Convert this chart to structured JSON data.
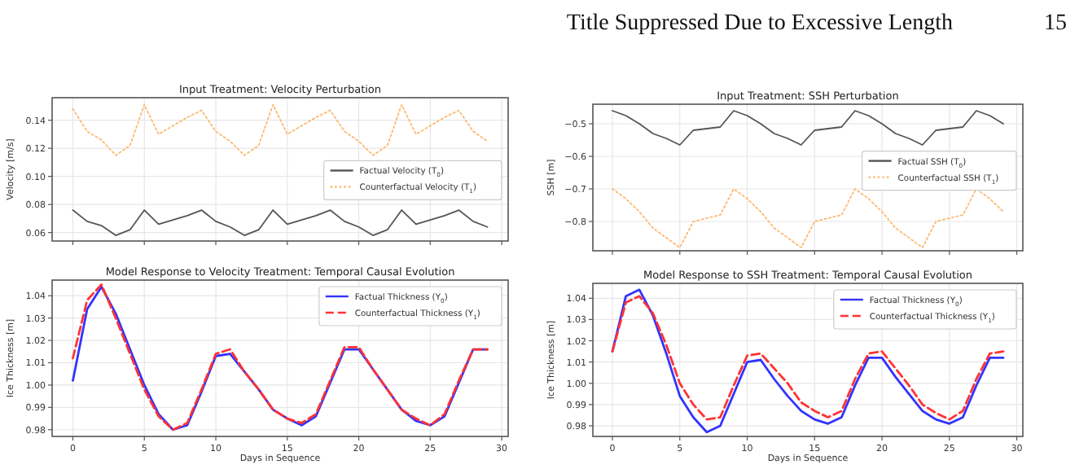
{
  "chart_data": [
    {
      "type": "line",
      "title": "Input Treatment: Velocity Perturbation",
      "ylabel": "Velocity [m/s]",
      "annotations": [
        "Title Suppressed Due to Excessive Length",
        "15"
      ],
      "x": [
        0,
        1,
        2,
        3,
        4,
        5,
        6,
        7,
        8,
        9,
        10,
        11,
        12,
        13,
        14,
        15,
        16,
        17,
        18,
        19,
        20,
        21,
        22,
        23,
        24,
        25,
        26,
        27,
        28,
        29
      ],
      "xlim": [
        -1.45,
        30.45
      ],
      "xticks": [
        {
          "value": 0,
          "label": null
        },
        {
          "value": 5,
          "label": null
        },
        {
          "value": 10,
          "label": null
        },
        {
          "value": 15,
          "label": null
        },
        {
          "value": 20,
          "label": null
        },
        {
          "value": 25,
          "label": null
        },
        {
          "value": 30,
          "label": null
        }
      ],
      "ylim": [
        0.054,
        0.156
      ],
      "yticks": [
        {
          "value": 0.06,
          "label": "0.06"
        },
        {
          "value": 0.08,
          "label": "0.08"
        },
        {
          "value": 0.1,
          "label": "0.10"
        },
        {
          "value": 0.12,
          "label": "0.12"
        },
        {
          "value": 0.14,
          "label": "0.14"
        }
      ],
      "tick_labels": "y",
      "grid": true,
      "legend": "right",
      "series": [
        {
          "name": "Factual Velocity (T$_{0}$)",
          "color": "#555555",
          "line_style": "solid",
          "values": [
            0.076,
            0.068,
            0.065,
            0.058,
            0.062,
            0.076,
            0.066,
            0.069,
            0.072,
            0.076,
            0.068,
            0.064,
            0.058,
            0.062,
            0.076,
            0.066,
            0.069,
            0.072,
            0.076,
            0.068,
            0.064,
            0.058,
            0.062,
            0.076,
            0.066,
            0.069,
            0.072,
            0.076,
            0.068,
            0.064
          ]
        },
        {
          "name": "Counterfactual Velocity (T$_{1}$)",
          "color": "#ffb870",
          "line_style": "dotted",
          "values": [
            0.148,
            0.132,
            0.126,
            0.115,
            0.122,
            0.151,
            0.13,
            0.136,
            0.142,
            0.147,
            0.132,
            0.125,
            0.115,
            0.122,
            0.151,
            0.13,
            0.136,
            0.142,
            0.147,
            0.132,
            0.125,
            0.115,
            0.122,
            0.151,
            0.13,
            0.136,
            0.142,
            0.147,
            0.132,
            0.125
          ]
        }
      ]
    },
    {
      "type": "line",
      "title": "Input Treatment: SSH Perturbation",
      "ylabel": "SSH [m]",
      "x": [
        0,
        1,
        2,
        3,
        4,
        5,
        6,
        7,
        8,
        9,
        10,
        11,
        12,
        13,
        14,
        15,
        16,
        17,
        18,
        19,
        20,
        21,
        22,
        23,
        24,
        25,
        26,
        27,
        28,
        29
      ],
      "xlim": [
        -1.45,
        30.45
      ],
      "xticks": [
        {
          "value": 0,
          "label": null
        },
        {
          "value": 5,
          "label": null
        },
        {
          "value": 10,
          "label": null
        },
        {
          "value": 15,
          "label": null
        },
        {
          "value": 20,
          "label": null
        },
        {
          "value": 25,
          "label": null
        },
        {
          "value": 30,
          "label": null
        }
      ],
      "ylim": [
        -0.89,
        -0.44
      ],
      "yticks": [
        {
          "value": -0.5,
          "label": "−0.5"
        },
        {
          "value": -0.6,
          "label": "−0.6"
        },
        {
          "value": -0.7,
          "label": "−0.7"
        },
        {
          "value": -0.8,
          "label": "−0.8"
        }
      ],
      "tick_labels": "y",
      "grid": true,
      "legend": "right",
      "series": [
        {
          "name": "Factual SSH (T$_{0}$)",
          "color": "#555555",
          "line_style": "solid",
          "values": [
            -0.46,
            -0.475,
            -0.5,
            -0.53,
            -0.545,
            -0.565,
            -0.52,
            -0.515,
            -0.51,
            -0.46,
            -0.475,
            -0.5,
            -0.53,
            -0.545,
            -0.565,
            -0.52,
            -0.515,
            -0.51,
            -0.46,
            -0.475,
            -0.5,
            -0.53,
            -0.545,
            -0.565,
            -0.52,
            -0.515,
            -0.51,
            -0.46,
            -0.475,
            -0.5
          ]
        },
        {
          "name": "Counterfactual SSH (T$_{1}$)",
          "color": "#ffb870",
          "line_style": "dotted",
          "values": [
            -0.7,
            -0.73,
            -0.77,
            -0.82,
            -0.85,
            -0.88,
            -0.8,
            -0.79,
            -0.78,
            -0.7,
            -0.73,
            -0.77,
            -0.82,
            -0.85,
            -0.88,
            -0.8,
            -0.79,
            -0.78,
            -0.7,
            -0.73,
            -0.77,
            -0.82,
            -0.85,
            -0.88,
            -0.8,
            -0.79,
            -0.78,
            -0.7,
            -0.73,
            -0.77
          ]
        }
      ]
    },
    {
      "type": "line",
      "title": "Model Response to Velocity Treatment: Temporal Causal Evolution",
      "xlabel": "Days in Sequence",
      "ylabel": "Ice Thickness [m]",
      "x": [
        0,
        1,
        2,
        3,
        4,
        5,
        6,
        7,
        8,
        9,
        10,
        11,
        12,
        13,
        14,
        15,
        16,
        17,
        18,
        19,
        20,
        21,
        22,
        23,
        24,
        25,
        26,
        27,
        28,
        29
      ],
      "xlim": [
        -1.45,
        30.45
      ],
      "xticks": [
        0,
        5,
        10,
        15,
        20,
        25,
        30
      ],
      "ylim": [
        0.977,
        1.047
      ],
      "yticks": [
        {
          "value": 0.98,
          "label": "0.98"
        },
        {
          "value": 0.99,
          "label": "0.99"
        },
        {
          "value": 1,
          "label": "1.00"
        },
        {
          "value": 1.01,
          "label": "1.01"
        },
        {
          "value": 1.02,
          "label": "1.02"
        },
        {
          "value": 1.03,
          "label": "1.03"
        },
        {
          "value": 1.04,
          "label": "1.04"
        }
      ],
      "grid": true,
      "legend": "top right",
      "series": [
        {
          "name": "Factual Thickness (Y$_{0}$)",
          "color": "#3333ff",
          "line_style": "solid",
          "values": [
            1.002,
            1.034,
            1.044,
            1.032,
            1.016,
            1.0,
            0.987,
            0.98,
            0.982,
            0.997,
            1.013,
            1.014,
            1.006,
            0.998,
            0.989,
            0.985,
            0.982,
            0.986,
            1.001,
            1.016,
            1.016,
            1.007,
            0.998,
            0.989,
            0.984,
            0.982,
            0.986,
            1.001,
            1.016,
            1.016
          ]
        },
        {
          "name": "Counterfactual Thickness (Y$_{1}$)",
          "color": "#ff3333",
          "line_style": "dashed",
          "values": [
            1.012,
            1.038,
            1.045,
            1.03,
            1.014,
            0.998,
            0.986,
            0.98,
            0.983,
            0.998,
            1.014,
            1.016,
            1.006,
            0.998,
            0.989,
            0.985,
            0.983,
            0.987,
            1.002,
            1.017,
            1.017,
            1.007,
            0.998,
            0.989,
            0.985,
            0.982,
            0.987,
            1.002,
            1.016,
            1.016
          ]
        }
      ]
    },
    {
      "type": "line",
      "title": "Model Response to SSH Treatment: Temporal Causal Evolution",
      "xlabel": "Days in Sequence",
      "ylabel": "Ice Thickness [m]",
      "x": [
        0,
        1,
        2,
        3,
        4,
        5,
        6,
        7,
        8,
        9,
        10,
        11,
        12,
        13,
        14,
        15,
        16,
        17,
        18,
        19,
        20,
        21,
        22,
        23,
        24,
        25,
        26,
        27,
        28,
        29
      ],
      "xlim": [
        -1.45,
        30.45
      ],
      "xticks": [
        0,
        5,
        10,
        15,
        20,
        25,
        30
      ],
      "ylim": [
        0.975,
        1.047
      ],
      "yticks": [
        {
          "value": 0.98,
          "label": "0.98"
        },
        {
          "value": 0.99,
          "label": "0.99"
        },
        {
          "value": 1,
          "label": "1.00"
        },
        {
          "value": 1.01,
          "label": "1.01"
        },
        {
          "value": 1.02,
          "label": "1.02"
        },
        {
          "value": 1.03,
          "label": "1.03"
        },
        {
          "value": 1.04,
          "label": "1.04"
        }
      ],
      "grid": true,
      "legend": "top right",
      "series": [
        {
          "name": "Factual Thickness (Y$_{0}$)",
          "color": "#3333ff",
          "line_style": "solid",
          "values": [
            1.015,
            1.041,
            1.044,
            1.032,
            1.014,
            0.994,
            0.984,
            0.977,
            0.98,
            0.995,
            1.01,
            1.011,
            1.002,
            0.994,
            0.987,
            0.983,
            0.981,
            0.984,
            0.999,
            1.012,
            1.012,
            1.003,
            0.995,
            0.987,
            0.983,
            0.981,
            0.984,
            0.999,
            1.012,
            1.012
          ]
        },
        {
          "name": "Counterfactual Thickness (Y$_{1}$)",
          "color": "#ff3333",
          "line_style": "dashed",
          "values": [
            1.015,
            1.038,
            1.041,
            1.033,
            1.018,
            1.0,
            0.99,
            0.983,
            0.984,
            0.999,
            1.013,
            1.014,
            1.007,
            1.0,
            0.991,
            0.987,
            0.984,
            0.987,
            1.002,
            1.014,
            1.015,
            1.007,
            0.999,
            0.99,
            0.986,
            0.983,
            0.987,
            1.002,
            1.014,
            1.015
          ]
        }
      ]
    }
  ]
}
